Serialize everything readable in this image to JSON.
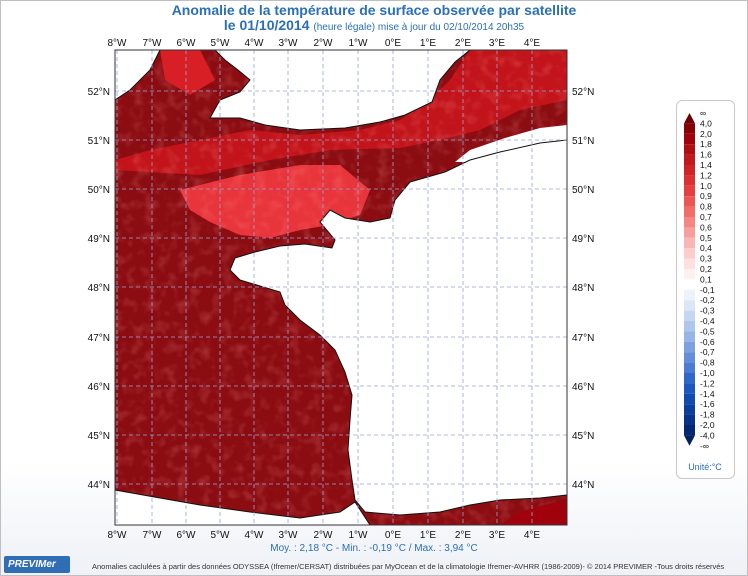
{
  "title": {
    "line1": "Anomalie de la température de surface observée par satellite",
    "line2_main": "le 01/10/2014",
    "line2_sub": "(heure légale) mise à jour du 02/10/2014 20h35"
  },
  "map": {
    "lon_labels": [
      "8°W",
      "7°W",
      "6°W",
      "5°W",
      "4°W",
      "3°W",
      "2°W",
      "1°W",
      "0°E",
      "1°E",
      "2°E",
      "3°E",
      "4°E"
    ],
    "lat_labels": [
      "52°N",
      "51°N",
      "50°N",
      "49°N",
      "48°N",
      "47°N",
      "46°N",
      "45°N",
      "44°N"
    ],
    "colors": {
      "sea_dark": "#8b0d12",
      "sea_mid": "#c2141a",
      "sea_light": "#e8353b",
      "land": "#ffffff",
      "grid": "#9aa4d6"
    }
  },
  "legend": {
    "labels": [
      "∞",
      "4,0",
      "2,0",
      "1,8",
      "1,6",
      "1,4",
      "1,2",
      "1,0",
      "0,9",
      "0,8",
      "0,7",
      "0,6",
      "0,5",
      "0,4",
      "0,3",
      "0,2",
      "0,1",
      "-0,1",
      "-0,2",
      "-0,3",
      "-0,4",
      "-0,5",
      "-0,6",
      "-0,7",
      "-0,8",
      "-1,0",
      "-1,2",
      "-1,4",
      "-1,6",
      "-1,8",
      "-2,0",
      "-4,0",
      "-∞"
    ],
    "colors": [
      "#6b0004",
      "#870008",
      "#a1000d",
      "#b20d13",
      "#c1191c",
      "#cf2326",
      "#dc3033",
      "#e5403f",
      "#ec5653",
      "#f26d69",
      "#f58683",
      "#f79f9c",
      "#f9b6b4",
      "#fbcdcb",
      "#fde0df",
      "#fff1f0",
      "#ffffff",
      "#eef3fb",
      "#dbe6f7",
      "#c6d7f2",
      "#afc6ec",
      "#96b4e6",
      "#7da1e0",
      "#648ed9",
      "#4b7bd2",
      "#2f68ca",
      "#1c58bf",
      "#124bb0",
      "#0c3e9e",
      "#08338a",
      "#052873",
      "#03205f"
    ],
    "unit": "Unité:°C"
  },
  "stats": "Moy. : 2,18 °C   -   Min. : -0,19 °C / Max. : 3,94 °C",
  "credits": "Anomalies caclulées à partir des données ODYSSEA (Ifremer/CERSAT) distribuées par MyOcean et de la climatologie Ifremer-AVHRR (1986-2009)- © 2014 PREVIMER -Tous droits réservés",
  "logo": "PREVIMer"
}
